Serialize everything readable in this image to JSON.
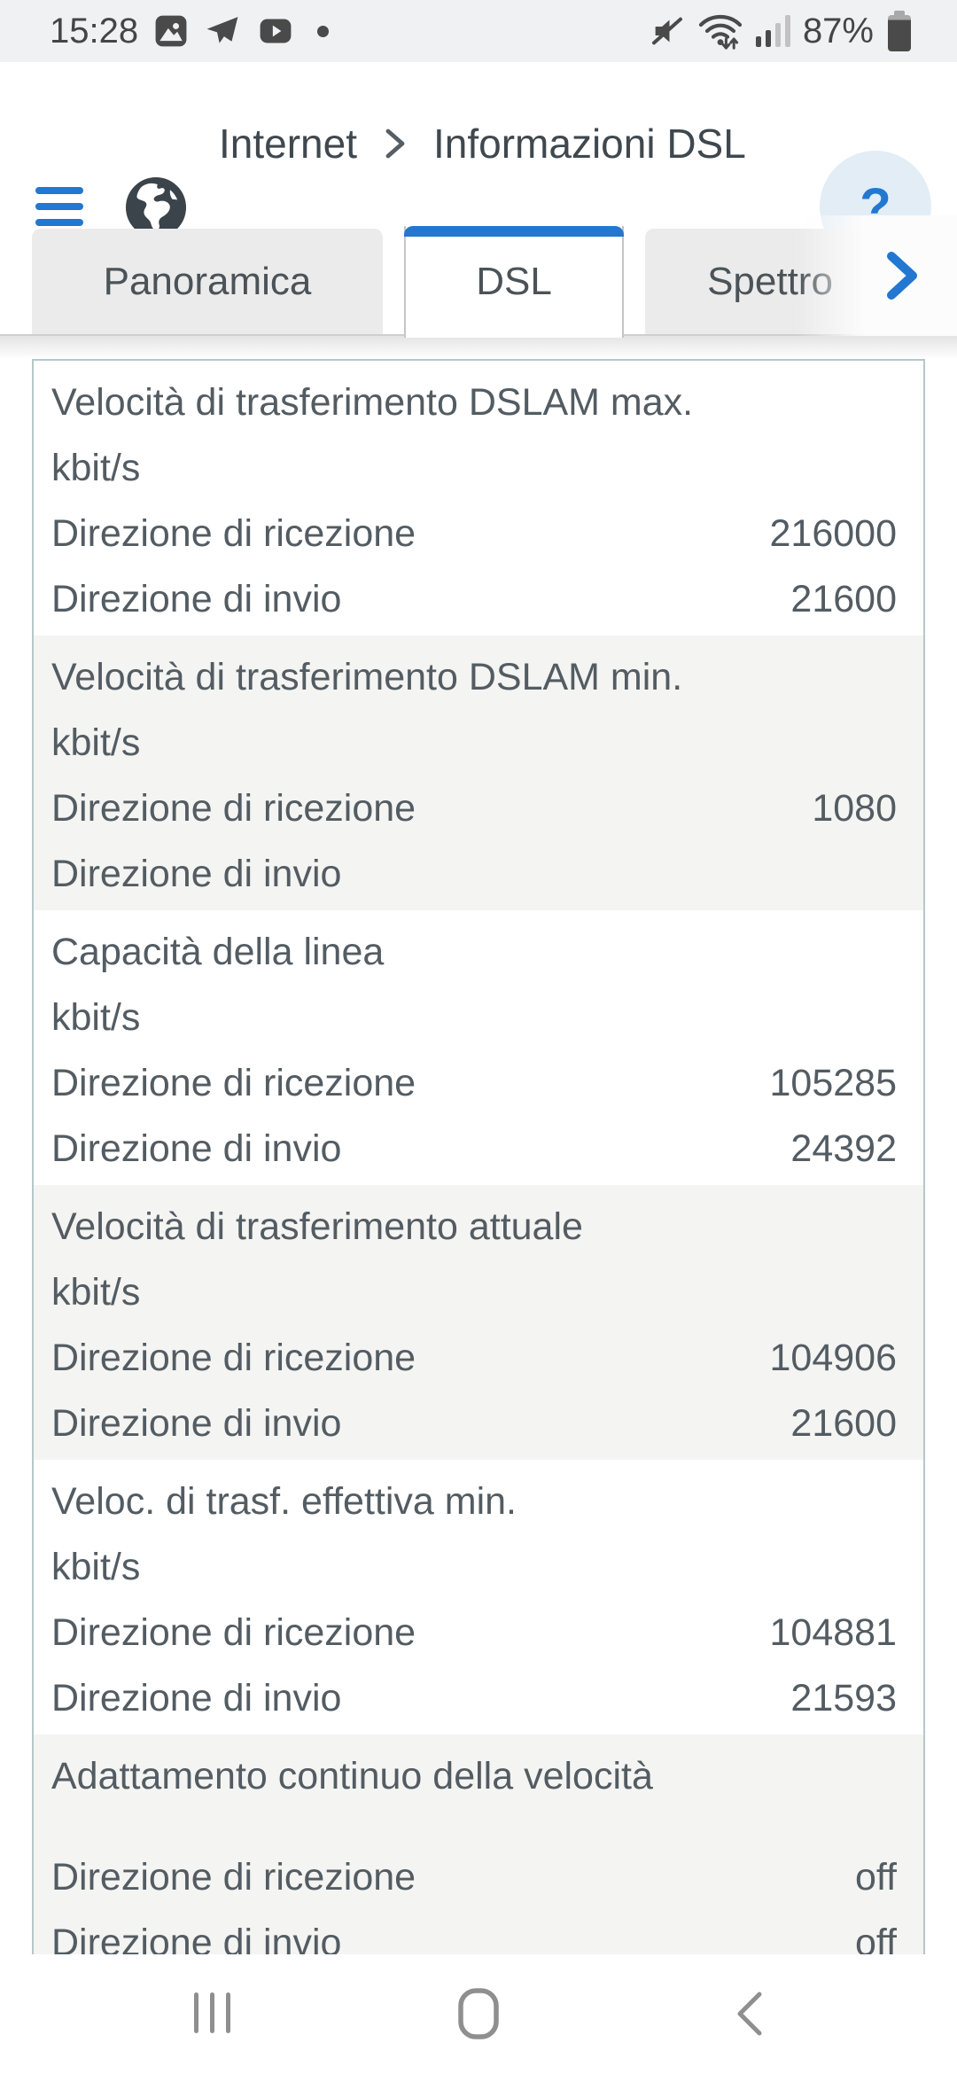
{
  "status_bar": {
    "time": "15:28",
    "battery_percent": "87%",
    "left_icons": [
      "gallery-icon",
      "telegram-icon",
      "youtube-icon",
      "notification-dot-icon"
    ],
    "right_icons": [
      "mute-icon",
      "wifi-icon",
      "signal-icon",
      "battery-icon"
    ]
  },
  "header": {
    "menu_icon": "hamburger-icon",
    "section_icon": "globe-icon",
    "breadcrumb": {
      "section": "Internet",
      "separator": ">",
      "page": "Informazioni DSL"
    },
    "help_label": "?"
  },
  "tabs": [
    {
      "label": "Panoramica",
      "active": false
    },
    {
      "label": "DSL",
      "active": true
    },
    {
      "label": "Spettro",
      "active": false
    }
  ],
  "tabs_more_icon": "chevron-right-icon",
  "dsl_table": {
    "sections": [
      {
        "title": "Velocità di trasferimento DSLAM max.",
        "unit": "kbit/s",
        "shaded": false,
        "rows": [
          {
            "label": "Direzione di ricezione",
            "value": "216000"
          },
          {
            "label": "Direzione di invio",
            "value": "21600"
          }
        ]
      },
      {
        "title": "Velocità di trasferimento DSLAM min.",
        "unit": "kbit/s",
        "shaded": true,
        "rows": [
          {
            "label": "Direzione di ricezione",
            "value": "1080"
          },
          {
            "label": "Direzione di invio",
            "value": ""
          }
        ]
      },
      {
        "title": "Capacità della linea",
        "unit": "kbit/s",
        "shaded": false,
        "rows": [
          {
            "label": "Direzione di ricezione",
            "value": "105285"
          },
          {
            "label": "Direzione di invio",
            "value": "24392"
          }
        ]
      },
      {
        "title": "Velocità di trasferimento attuale",
        "unit": "kbit/s",
        "shaded": true,
        "rows": [
          {
            "label": "Direzione di ricezione",
            "value": "104906"
          },
          {
            "label": "Direzione di invio",
            "value": "21600"
          }
        ]
      },
      {
        "title": "Veloc. di trasf. effettiva min.",
        "unit": "kbit/s",
        "shaded": false,
        "rows": [
          {
            "label": "Direzione di ricezione",
            "value": "104881"
          },
          {
            "label": "Direzione di invio",
            "value": "21593"
          }
        ]
      },
      {
        "title": "Adattamento continuo della velocità",
        "unit": "",
        "shaded": true,
        "rows": [
          {
            "label": "Direzione di ricezione",
            "value": "off"
          },
          {
            "label": "Direzione di invio",
            "value": "off"
          }
        ]
      }
    ]
  },
  "nav_bar": {
    "icons": [
      "recents-icon",
      "home-icon",
      "back-icon"
    ]
  },
  "colors": {
    "accent_blue": "#2277d0",
    "shaded_section_bg": "#f4f4f2",
    "table_border": "#b5c7ca",
    "text": "#535c62",
    "status_bar_bg": "#f0f1f3"
  }
}
